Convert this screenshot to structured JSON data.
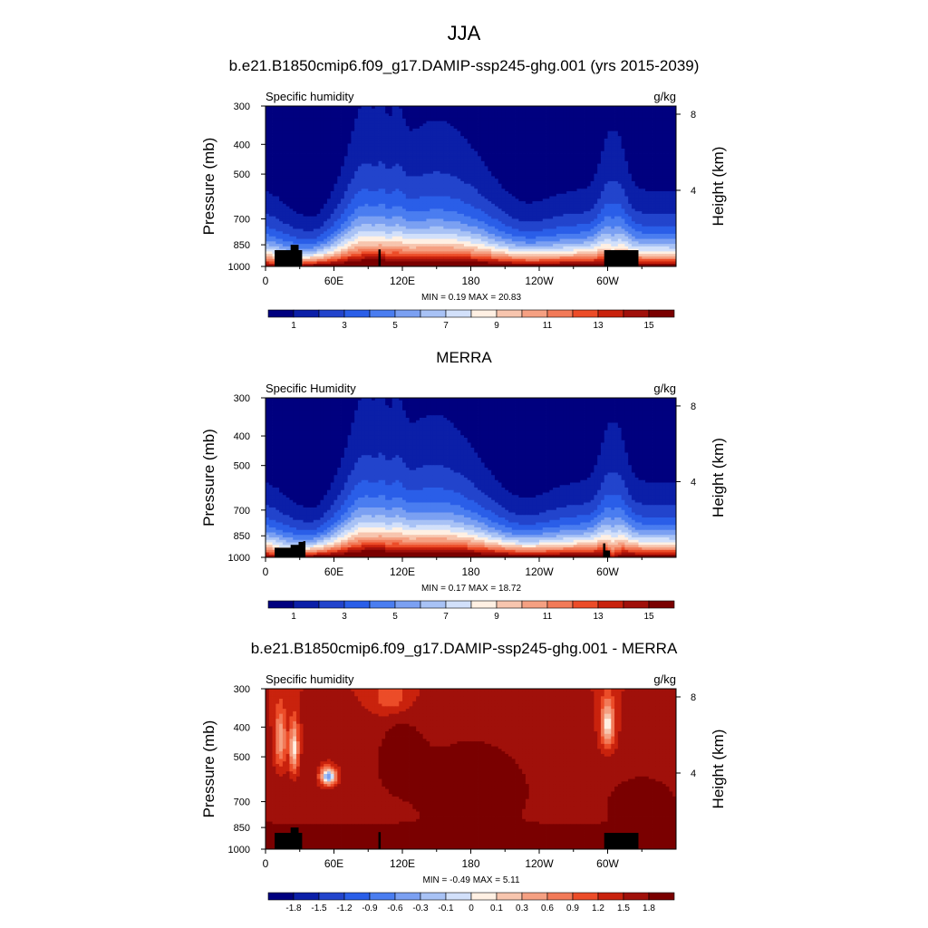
{
  "figure_title": "JJA",
  "chart_data": [
    {
      "type": "heatmap",
      "title": "b.e21.B1850cmip6.f09_g17.DAMIP-ssp245-ghg.001 (yrs 2015-2039)",
      "left_label": "Specific humidity",
      "right_label": "g/kg",
      "ylabel": "Pressure (mb)",
      "y2label": "Height (km)",
      "xticks": [
        "0",
        "60E",
        "120E",
        "180",
        "120W",
        "60W"
      ],
      "x_lon": [
        0,
        60,
        120,
        180,
        240,
        300
      ],
      "xlim": [
        0,
        360
      ],
      "yticks": [
        "300",
        "400",
        "500",
        "700",
        "850",
        "1000"
      ],
      "y_p": [
        300,
        400,
        500,
        700,
        850,
        1000
      ],
      "ylim": [
        300,
        1000
      ],
      "height_ticks": [
        "8",
        "4"
      ],
      "height_km": [
        8,
        4
      ],
      "stats": "MIN =   0.19  MAX =  20.83",
      "colorbar": {
        "levels": [
          0,
          1,
          2,
          3,
          4,
          5,
          6,
          7,
          8,
          9,
          10,
          11,
          12,
          13,
          14,
          15
        ],
        "labels": [
          "1",
          "3",
          "5",
          "7",
          "9",
          "11",
          "13",
          "15"
        ],
        "colors": [
          "#00007f",
          "#0b1fa8",
          "#2244cc",
          "#2a5ee8",
          "#4a7df0",
          "#7ba0f2",
          "#a8c2f5",
          "#d2e0fa",
          "#fff0e3",
          "#f7c5ae",
          "#f5a082",
          "#f27a58",
          "#ec4c28",
          "#c9220d",
          "#a0100a",
          "#7a0000"
        ]
      },
      "field": "humidity",
      "seed": 1
    },
    {
      "type": "heatmap",
      "title": "MERRA",
      "left_label": "Specific Humidity",
      "right_label": "g/kg",
      "ylabel": "Pressure (mb)",
      "y2label": "Height (km)",
      "xticks": [
        "0",
        "60E",
        "120E",
        "180",
        "120W",
        "60W"
      ],
      "x_lon": [
        0,
        60,
        120,
        180,
        240,
        300
      ],
      "xlim": [
        0,
        360
      ],
      "yticks": [
        "300",
        "400",
        "500",
        "700",
        "850",
        "1000"
      ],
      "y_p": [
        300,
        400,
        500,
        700,
        850,
        1000
      ],
      "ylim": [
        300,
        1000
      ],
      "height_ticks": [
        "8",
        "4"
      ],
      "height_km": [
        8,
        4
      ],
      "stats": "MIN =   0.17  MAX =  18.72",
      "colorbar": {
        "levels": [
          0,
          1,
          2,
          3,
          4,
          5,
          6,
          7,
          8,
          9,
          10,
          11,
          12,
          13,
          14,
          15
        ],
        "labels": [
          "1",
          "3",
          "5",
          "7",
          "9",
          "11",
          "13",
          "15"
        ],
        "colors": [
          "#00007f",
          "#0b1fa8",
          "#2244cc",
          "#2a5ee8",
          "#4a7df0",
          "#7ba0f2",
          "#a8c2f5",
          "#d2e0fa",
          "#fff0e3",
          "#f7c5ae",
          "#f5a082",
          "#f27a58",
          "#ec4c28",
          "#c9220d",
          "#a0100a",
          "#7a0000"
        ]
      },
      "field": "humidity",
      "seed": 2
    },
    {
      "type": "heatmap",
      "title": "b.e21.B1850cmip6.f09_g17.DAMIP-ssp245-ghg.001 - MERRA",
      "left_label": "Specific humidity",
      "right_label": "g/kg",
      "ylabel": "Pressure (mb)",
      "y2label": "Height (km)",
      "xticks": [
        "0",
        "60E",
        "120E",
        "180",
        "120W",
        "60W"
      ],
      "x_lon": [
        0,
        60,
        120,
        180,
        240,
        300
      ],
      "xlim": [
        0,
        360
      ],
      "yticks": [
        "300",
        "400",
        "500",
        "700",
        "850",
        "1000"
      ],
      "y_p": [
        300,
        400,
        500,
        700,
        850,
        1000
      ],
      "ylim": [
        300,
        1000
      ],
      "height_ticks": [
        "8",
        "4"
      ],
      "height_km": [
        8,
        4
      ],
      "stats": "MIN =  -0.49  MAX =   5.11",
      "colorbar": {
        "levels": [
          -2.1,
          -1.8,
          -1.5,
          -1.2,
          -0.9,
          -0.6,
          -0.3,
          -0.1,
          0,
          0.1,
          0.3,
          0.6,
          0.9,
          1.2,
          1.5,
          1.8
        ],
        "labels": [
          "-1.8",
          "-1.5",
          "-1.2",
          "-0.9",
          "-0.6",
          "-0.3",
          "-0.1",
          "0",
          "0.1",
          "0.3",
          "0.6",
          "0.9",
          "1.2",
          "1.5",
          "1.8"
        ],
        "colors": [
          "#00007f",
          "#0b1fa8",
          "#2244cc",
          "#2a5ee8",
          "#4a7df0",
          "#7ba0f2",
          "#a8c2f5",
          "#d2e0fa",
          "#fff0e3",
          "#f7c5ae",
          "#f5a082",
          "#f27a58",
          "#ec4c28",
          "#c9220d",
          "#a0100a",
          "#7a0000"
        ]
      },
      "field": "difference",
      "seed": 3
    }
  ]
}
